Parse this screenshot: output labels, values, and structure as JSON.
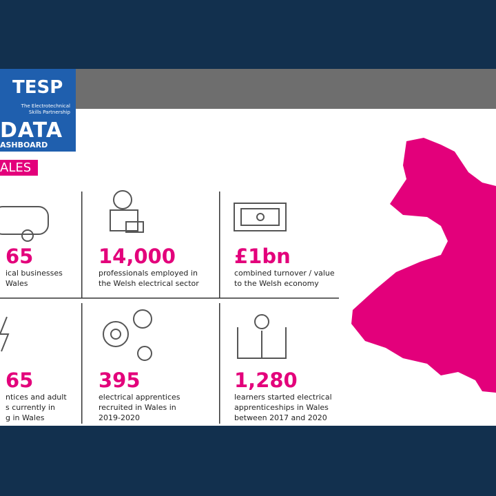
{
  "header": {
    "brand": "TESP",
    "tagline": [
      "The Electrotechnical",
      "Skills Partnership"
    ],
    "title": "DATA",
    "subtitle": "ASHBOARD"
  },
  "region": "ALES",
  "stats": [
    {
      "value": "65",
      "lines": [
        "ical businesses",
        "Wales"
      ]
    },
    {
      "value": "14,000",
      "lines": [
        "professionals employed in",
        "the Welsh electrical sector"
      ]
    },
    {
      "value": "£1bn",
      "lines": [
        "combined turnover / value",
        "to the Welsh economy"
      ]
    },
    {
      "value": "65",
      "lines": [
        "ntices and adult",
        "s currently in",
        "g in Wales"
      ]
    },
    {
      "value": "395",
      "lines": [
        "electrical apprentices",
        "recruited in Wales in",
        "2019-2020"
      ]
    },
    {
      "value": "1,280",
      "lines": [
        "learners started electrical",
        "apprenticeships in Wales",
        "between 2017 and 2020"
      ]
    }
  ]
}
